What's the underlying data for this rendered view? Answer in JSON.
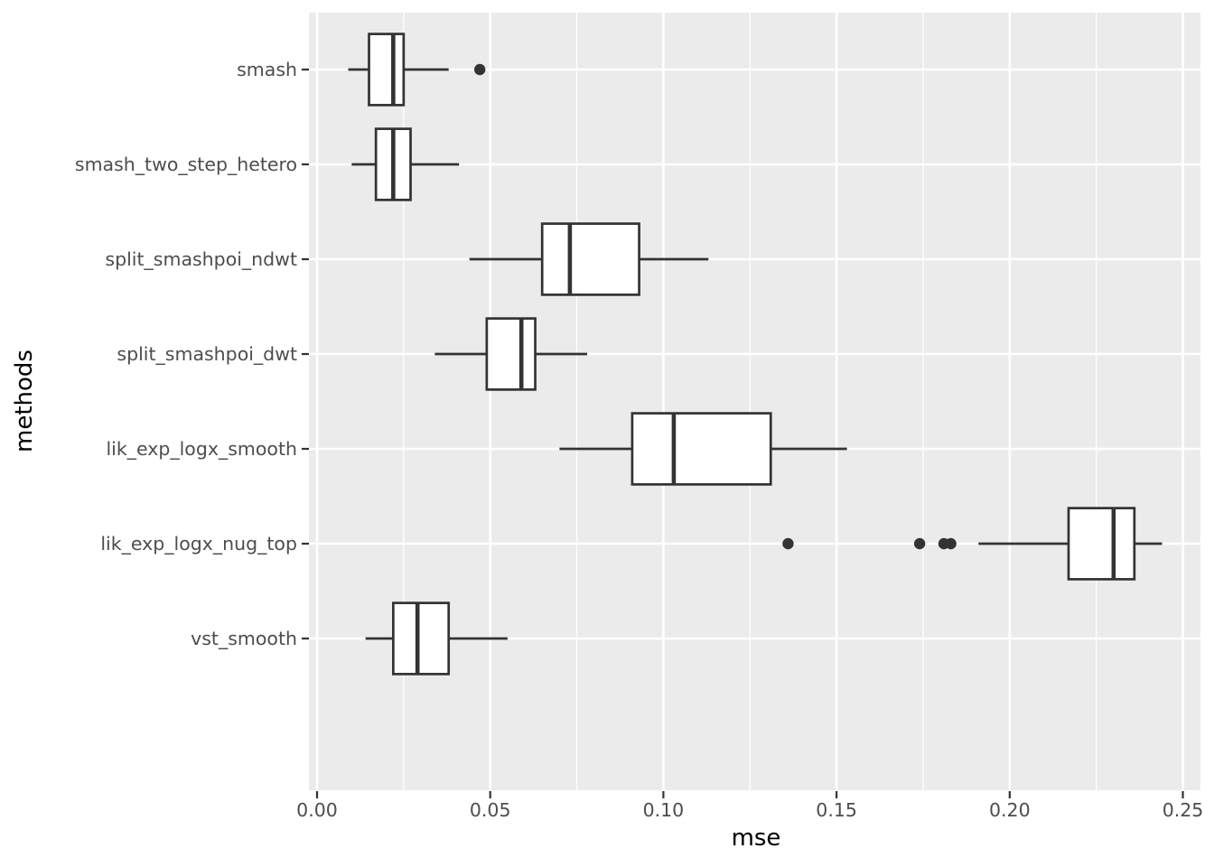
{
  "chart_data": {
    "type": "boxplot",
    "orientation": "horizontal",
    "title": "",
    "xlabel": "mse",
    "ylabel": "methods",
    "xlim": [
      -0.00235,
      0.25508
    ],
    "x_major_ticks": [
      0.0,
      0.05,
      0.1,
      0.15,
      0.2,
      0.25
    ],
    "x_tick_labels": [
      "0.00",
      "0.05",
      "0.10",
      "0.15",
      "0.20",
      "0.25"
    ],
    "x_minor_gridlines": [
      0.025,
      0.075,
      0.125,
      0.175,
      0.225
    ],
    "grid": "major-and-minor-x, major-y, white on gray panel",
    "legend": "none",
    "categories_top_to_bottom": [
      "smash",
      "smash_two_step_hetero",
      "split_smashpoi_ndwt",
      "split_smashpoi_dwt",
      "lik_exp_logx_smooth",
      "lik_exp_logx_nug_top",
      "vst_smooth"
    ],
    "series": [
      {
        "method": "smash",
        "whisker_low": 0.009,
        "q1": 0.015,
        "median": 0.022,
        "q3": 0.025,
        "whisker_high": 0.038,
        "outliers": [
          0.047
        ]
      },
      {
        "method": "smash_two_step_hetero",
        "whisker_low": 0.01,
        "q1": 0.017,
        "median": 0.022,
        "q3": 0.027,
        "whisker_high": 0.041,
        "outliers": []
      },
      {
        "method": "split_smashpoi_ndwt",
        "whisker_low": 0.044,
        "q1": 0.065,
        "median": 0.073,
        "q3": 0.093,
        "whisker_high": 0.113,
        "outliers": []
      },
      {
        "method": "split_smashpoi_dwt",
        "whisker_low": 0.034,
        "q1": 0.049,
        "median": 0.059,
        "q3": 0.063,
        "whisker_high": 0.078,
        "outliers": []
      },
      {
        "method": "lik_exp_logx_smooth",
        "whisker_low": 0.07,
        "q1": 0.091,
        "median": 0.103,
        "q3": 0.131,
        "whisker_high": 0.153,
        "outliers": []
      },
      {
        "method": "lik_exp_logx_nug_top",
        "whisker_low": 0.191,
        "q1": 0.217,
        "median": 0.23,
        "q3": 0.236,
        "whisker_high": 0.244,
        "outliers": [
          0.136,
          0.174,
          0.181,
          0.183
        ]
      },
      {
        "method": "vst_smooth",
        "whisker_low": 0.014,
        "q1": 0.022,
        "median": 0.029,
        "q3": 0.038,
        "whisker_high": 0.055,
        "outliers": []
      }
    ],
    "colors": {
      "panel_background": "#EBEBEB",
      "gridline": "#FFFFFF",
      "box_stroke": "#333333",
      "box_fill": "#FFFFFF",
      "outlier_fill": "#333333",
      "tick_mark": "#333333",
      "tick_label": "#4D4D4D",
      "axis_title": "#000000",
      "page_background": "#FFFFFF"
    }
  }
}
